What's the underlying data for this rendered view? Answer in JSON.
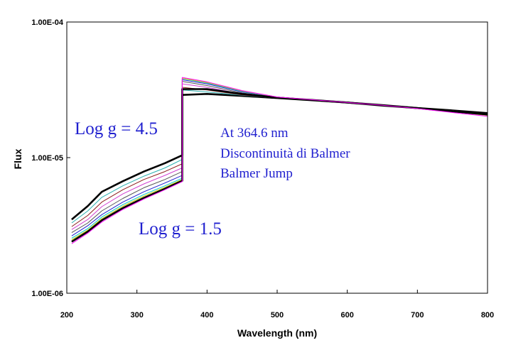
{
  "chart_data": {
    "type": "line",
    "title": "",
    "xlabel": "Wavelength (nm)",
    "ylabel": "Flux",
    "xlim": [
      200,
      800
    ],
    "ylim": [
      1e-06,
      0.0001
    ],
    "yscale": "log",
    "grid": false,
    "legend": "none",
    "x_ticks": [
      "200",
      "300",
      "400",
      "500",
      "600",
      "700",
      "800"
    ],
    "y_ticks": [
      "1.00E-04",
      "1.00E-05",
      "1.00E-06"
    ],
    "jump_wavelength": 364.6,
    "series": [
      {
        "color": "#000000",
        "emphasis": true,
        "values": [
          [
            207,
            3.5e-06
          ],
          [
            230,
            4.4e-06
          ],
          [
            250,
            5.6e-06
          ],
          [
            280,
            6.7e-06
          ],
          [
            310,
            7.9e-06
          ],
          [
            340,
            9.1e-06
          ],
          [
            364.6,
            1.04e-05
          ],
          [
            364.6,
            2.9e-05
          ],
          [
            400,
            2.95e-05
          ],
          [
            450,
            2.85e-05
          ],
          [
            500,
            2.75e-05
          ],
          [
            550,
            2.65e-05
          ],
          [
            600,
            2.55e-05
          ],
          [
            650,
            2.42e-05
          ],
          [
            700,
            2.32e-05
          ],
          [
            750,
            2.23e-05
          ],
          [
            800,
            2.13e-05
          ]
        ]
      },
      {
        "color": "#2ab0b0",
        "values": [
          [
            207,
            3.3e-06
          ],
          [
            230,
            4.05e-06
          ],
          [
            250,
            5.1e-06
          ],
          [
            280,
            6.2e-06
          ],
          [
            310,
            7.3e-06
          ],
          [
            340,
            8.4e-06
          ],
          [
            364.6,
            9.7e-06
          ],
          [
            364.6,
            3.15e-05
          ],
          [
            400,
            3.05e-05
          ],
          [
            450,
            2.88e-05
          ],
          [
            500,
            2.75e-05
          ],
          [
            550,
            2.65e-05
          ],
          [
            600,
            2.55e-05
          ],
          [
            650,
            2.44e-05
          ],
          [
            700,
            2.32e-05
          ],
          [
            750,
            2.21e-05
          ],
          [
            800,
            2.1e-05
          ]
        ]
      },
      {
        "color": "#8b1a1a",
        "values": [
          [
            207,
            3.1e-06
          ],
          [
            230,
            3.75e-06
          ],
          [
            250,
            4.7e-06
          ],
          [
            280,
            5.8e-06
          ],
          [
            310,
            6.9e-06
          ],
          [
            340,
            7.9e-06
          ],
          [
            364.6,
            9e-06
          ],
          [
            364.6,
            3.3e-05
          ],
          [
            400,
            3.15e-05
          ],
          [
            450,
            2.9e-05
          ],
          [
            500,
            2.75e-05
          ],
          [
            550,
            2.65e-05
          ],
          [
            600,
            2.55e-05
          ],
          [
            650,
            2.44e-05
          ],
          [
            700,
            2.33e-05
          ],
          [
            750,
            2.21e-05
          ],
          [
            800,
            2.09e-05
          ]
        ]
      },
      {
        "color": "#d040d0",
        "values": [
          [
            207,
            2.95e-06
          ],
          [
            230,
            3.5e-06
          ],
          [
            250,
            4.35e-06
          ],
          [
            280,
            5.4e-06
          ],
          [
            310,
            6.4e-06
          ],
          [
            340,
            7.4e-06
          ],
          [
            364.6,
            8.4e-06
          ],
          [
            364.6,
            3.5e-05
          ],
          [
            400,
            3.3e-05
          ],
          [
            450,
            2.95e-05
          ],
          [
            500,
            2.77e-05
          ],
          [
            550,
            2.66e-05
          ],
          [
            600,
            2.56e-05
          ],
          [
            650,
            2.45e-05
          ],
          [
            700,
            2.33e-05
          ],
          [
            750,
            2.2e-05
          ],
          [
            800,
            2.08e-05
          ]
        ]
      },
      {
        "color": "#555555",
        "values": [
          [
            207,
            2.8e-06
          ],
          [
            230,
            3.3e-06
          ],
          [
            250,
            4.05e-06
          ],
          [
            280,
            5e-06
          ],
          [
            310,
            6e-06
          ],
          [
            340,
            6.9e-06
          ],
          [
            364.6,
            7.9e-06
          ],
          [
            364.6,
            3.65e-05
          ],
          [
            400,
            3.4e-05
          ],
          [
            450,
            3e-05
          ],
          [
            500,
            2.78e-05
          ],
          [
            550,
            2.67e-05
          ],
          [
            600,
            2.56e-05
          ],
          [
            650,
            2.45e-05
          ],
          [
            700,
            2.33e-05
          ],
          [
            750,
            2.2e-05
          ],
          [
            800,
            2.07e-05
          ]
        ]
      },
      {
        "color": "#1f1fcf",
        "values": [
          [
            207,
            2.65e-06
          ],
          [
            230,
            3.15e-06
          ],
          [
            250,
            3.8e-06
          ],
          [
            280,
            4.7e-06
          ],
          [
            310,
            5.6e-06
          ],
          [
            340,
            6.5e-06
          ],
          [
            364.6,
            7.4e-06
          ],
          [
            364.6,
            3.75e-05
          ],
          [
            400,
            3.5e-05
          ],
          [
            450,
            3.05e-05
          ],
          [
            500,
            2.8e-05
          ],
          [
            550,
            2.67e-05
          ],
          [
            600,
            2.56e-05
          ],
          [
            650,
            2.45e-05
          ],
          [
            700,
            2.33e-05
          ],
          [
            750,
            2.19e-05
          ],
          [
            800,
            2.06e-05
          ]
        ]
      },
      {
        "color": "#00c8c8",
        "values": [
          [
            207,
            2.55e-06
          ],
          [
            230,
            3e-06
          ],
          [
            250,
            3.65e-06
          ],
          [
            280,
            4.5e-06
          ],
          [
            310,
            5.35e-06
          ],
          [
            340,
            6.2e-06
          ],
          [
            364.6,
            7.05e-06
          ],
          [
            364.6,
            3.82e-05
          ],
          [
            400,
            3.55e-05
          ],
          [
            450,
            3.08e-05
          ],
          [
            500,
            2.8e-05
          ],
          [
            550,
            2.67e-05
          ],
          [
            600,
            2.56e-05
          ],
          [
            650,
            2.45e-05
          ],
          [
            700,
            2.32e-05
          ],
          [
            750,
            2.18e-05
          ],
          [
            800,
            2.05e-05
          ]
        ]
      },
      {
        "color": "#c8c800",
        "values": [
          [
            207,
            2.48e-06
          ],
          [
            230,
            2.92e-06
          ],
          [
            250,
            3.55e-06
          ],
          [
            280,
            4.38e-06
          ],
          [
            310,
            5.2e-06
          ],
          [
            340,
            6.05e-06
          ],
          [
            364.6,
            6.9e-06
          ],
          [
            364.6,
            3.85e-05
          ],
          [
            400,
            3.58e-05
          ],
          [
            450,
            3.1e-05
          ],
          [
            500,
            2.8e-05
          ],
          [
            550,
            2.67e-05
          ],
          [
            600,
            2.56e-05
          ],
          [
            650,
            2.44e-05
          ],
          [
            700,
            2.32e-05
          ],
          [
            750,
            2.18e-05
          ],
          [
            800,
            2.05e-05
          ]
        ]
      },
      {
        "color": "#000000",
        "emphasis": true,
        "values": [
          [
            207,
            2.4e-06
          ],
          [
            230,
            2.85e-06
          ],
          [
            250,
            3.45e-06
          ],
          [
            280,
            4.25e-06
          ],
          [
            310,
            5.05e-06
          ],
          [
            340,
            5.9e-06
          ],
          [
            364.6,
            6.75e-06
          ],
          [
            364.6,
            3.2e-05
          ],
          [
            400,
            3.2e-05
          ],
          [
            450,
            2.95e-05
          ],
          [
            500,
            2.77e-05
          ],
          [
            550,
            2.66e-05
          ],
          [
            600,
            2.55e-05
          ],
          [
            650,
            2.44e-05
          ],
          [
            700,
            2.32e-05
          ],
          [
            750,
            2.19e-05
          ],
          [
            800,
            2.08e-05
          ]
        ]
      },
      {
        "color": "#ff00ff",
        "values": [
          [
            207,
            2.32e-06
          ],
          [
            230,
            2.78e-06
          ],
          [
            250,
            3.35e-06
          ],
          [
            280,
            4.15e-06
          ],
          [
            310,
            4.95e-06
          ],
          [
            340,
            5.8e-06
          ],
          [
            364.6,
            6.65e-06
          ],
          [
            364.6,
            3.9e-05
          ],
          [
            400,
            3.62e-05
          ],
          [
            450,
            3.12e-05
          ],
          [
            500,
            2.8e-05
          ],
          [
            550,
            2.67e-05
          ],
          [
            600,
            2.55e-05
          ],
          [
            650,
            2.43e-05
          ],
          [
            700,
            2.3e-05
          ],
          [
            750,
            2.15e-05
          ],
          [
            800,
            2.02e-05
          ]
        ]
      }
    ],
    "annotations": {
      "high_gravity": "Log g = 4.5",
      "low_gravity": "Log g = 1.5",
      "jump_line1": "At 364.6 nm",
      "jump_line2": "Discontinuità di Balmer",
      "jump_line3": "Balmer Jump"
    }
  }
}
